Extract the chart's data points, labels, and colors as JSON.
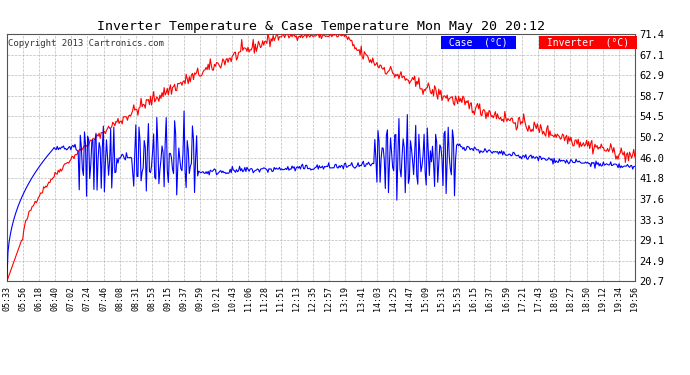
{
  "title": "Inverter Temperature & Case Temperature Mon May 20 20:12",
  "copyright": "Copyright 2013 Cartronics.com",
  "ylabel_right_ticks": [
    20.7,
    24.9,
    29.1,
    33.3,
    37.6,
    41.8,
    46.0,
    50.2,
    54.5,
    58.7,
    62.9,
    67.1,
    71.4
  ],
  "ylim": [
    20.7,
    71.4
  ],
  "background_color": "#ffffff",
  "grid_color": "#aaaaaa",
  "inverter_color": "#ff0000",
  "case_color": "#0000ff",
  "legend_case_bg": "#0000ff",
  "legend_inverter_bg": "#ff0000",
  "legend_text_color": "#ffffff",
  "x_tick_labels": [
    "05:33",
    "05:56",
    "06:18",
    "06:40",
    "07:02",
    "07:24",
    "07:46",
    "08:08",
    "08:31",
    "08:53",
    "09:15",
    "09:37",
    "09:59",
    "10:21",
    "10:43",
    "11:06",
    "11:28",
    "11:51",
    "12:13",
    "12:35",
    "12:57",
    "13:19",
    "13:41",
    "14:03",
    "14:25",
    "14:47",
    "15:09",
    "15:31",
    "15:53",
    "16:15",
    "16:37",
    "16:59",
    "17:21",
    "17:43",
    "18:05",
    "18:27",
    "18:50",
    "19:12",
    "19:34",
    "19:56"
  ],
  "n_points": 600,
  "figwidth": 6.9,
  "figheight": 3.75,
  "dpi": 100
}
